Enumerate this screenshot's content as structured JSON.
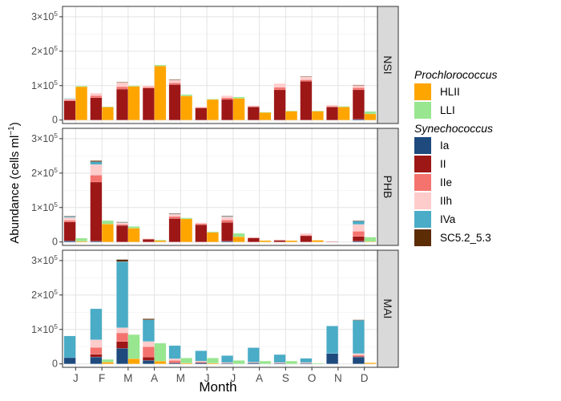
{
  "chart_data": {
    "type": "bar",
    "stacked": true,
    "dodged": true,
    "xlabel": "Month",
    "ylabel_main": "Abundance (cells ml",
    "ylabel_sup": "−1",
    "ylabel_close": ")",
    "y_ticks": [
      {
        "value": 0,
        "label": "0"
      },
      {
        "value": 100000,
        "mant": "1×10",
        "exp": "5"
      },
      {
        "value": 200000,
        "mant": "2×10",
        "exp": "5"
      },
      {
        "value": 300000,
        "mant": "3×10",
        "exp": "5"
      }
    ],
    "ylim": [
      -10000,
      330000
    ],
    "categories": [
      "J",
      "F",
      "M",
      "A",
      "M",
      "J",
      "J",
      "A",
      "S",
      "O",
      "N",
      "D"
    ],
    "grid": true,
    "legend_position": "right",
    "legend": {
      "groups": [
        {
          "title": "Prochlorococcus",
          "items": [
            {
              "name": "HLII",
              "color": "#ffa500"
            },
            {
              "name": "LLI",
              "color": "#98e68f"
            }
          ]
        },
        {
          "title": "Synechococcus",
          "items": [
            {
              "name": "Ia",
              "color": "#1e4a7e"
            },
            {
              "name": "II",
              "color": "#9e1717"
            },
            {
              "name": "IIe",
              "color": "#f4736f"
            },
            {
              "name": "IIh",
              "color": "#ffcccc"
            },
            {
              "name": "IVa",
              "color": "#4aacc6"
            },
            {
              "name": "SC5.2_5.3",
              "color": "#5c2c05"
            }
          ]
        }
      ]
    },
    "panels": [
      {
        "name": "NSI",
        "synechococcus": [
          {
            "Ia": 0,
            "II": 56000,
            "IIe": 3000,
            "IIh": 3000,
            "IVa": 1000,
            "SC5.2_5.3": 0
          },
          {
            "Ia": 0,
            "II": 65000,
            "IIe": 6000,
            "IIh": 7000,
            "IVa": 0,
            "SC5.2_5.3": 0
          },
          {
            "Ia": 0,
            "II": 90000,
            "IIe": 7000,
            "IIh": 12000,
            "IVa": 0,
            "SC5.2_5.3": 1000
          },
          {
            "Ia": 0,
            "II": 93000,
            "IIe": 3000,
            "IIh": 4000,
            "IVa": 0,
            "SC5.2_5.3": 0
          },
          {
            "Ia": 0,
            "II": 103000,
            "IIe": 5000,
            "IIh": 9000,
            "IVa": 0,
            "SC5.2_5.3": 1000
          },
          {
            "Ia": 0,
            "II": 35000,
            "IIe": 2000,
            "IIh": 2000,
            "IVa": 0,
            "SC5.2_5.3": 0
          },
          {
            "Ia": 0,
            "II": 60000,
            "IIe": 5000,
            "IIh": 6000,
            "IVa": 0,
            "SC5.2_5.3": 0
          },
          {
            "Ia": 0,
            "II": 38000,
            "IIe": 2000,
            "IIh": 2000,
            "IVa": 0,
            "SC5.2_5.3": 0
          },
          {
            "Ia": 0,
            "II": 88000,
            "IIe": 7000,
            "IIh": 11000,
            "IVa": 0,
            "SC5.2_5.3": 0
          },
          {
            "Ia": 0,
            "II": 113000,
            "IIe": 4000,
            "IIh": 9000,
            "IVa": 0,
            "SC5.2_5.3": 1000
          },
          {
            "Ia": 0,
            "II": 38000,
            "IIe": 2000,
            "IIh": 4000,
            "IVa": 0,
            "SC5.2_5.3": 0
          },
          {
            "Ia": 2000,
            "II": 86000,
            "IIe": 6000,
            "IIh": 7000,
            "IVa": 0,
            "SC5.2_5.3": 1000
          }
        ],
        "prochlorococcus": [
          {
            "HLII": 97000,
            "LLI": 2000
          },
          {
            "HLII": 38000,
            "LLI": 1000
          },
          {
            "HLII": 98000,
            "LLI": 2000
          },
          {
            "HLII": 157000,
            "LLI": 3000
          },
          {
            "HLII": 70000,
            "LLI": 4000
          },
          {
            "HLII": 60000,
            "LLI": 1000
          },
          {
            "HLII": 63000,
            "LLI": 4000
          },
          {
            "HLII": 22000,
            "LLI": 1000
          },
          {
            "HLII": 26000,
            "LLI": 1000
          },
          {
            "HLII": 26000,
            "LLI": 1000
          },
          {
            "HLII": 38000,
            "LLI": 2000
          },
          {
            "HLII": 18000,
            "LLI": 7000
          }
        ]
      },
      {
        "name": "PHB",
        "synechococcus": [
          {
            "Ia": 3000,
            "II": 55000,
            "IIe": 5000,
            "IIh": 8000,
            "IVa": 3000,
            "SC5.2_5.3": 1000
          },
          {
            "Ia": 2000,
            "II": 172000,
            "IIe": 20000,
            "IIh": 31000,
            "IVa": 8000,
            "SC5.2_5.3": 3000
          },
          {
            "Ia": 0,
            "II": 48000,
            "IIe": 3000,
            "IIh": 5000,
            "IVa": 1000,
            "SC5.2_5.3": 1000
          },
          {
            "Ia": 0,
            "II": 8000,
            "IIe": 1000,
            "IIh": 1000,
            "IVa": 0,
            "SC5.2_5.3": 0
          },
          {
            "Ia": 0,
            "II": 68000,
            "IIe": 6000,
            "IIh": 7000,
            "IVa": 1000,
            "SC5.2_5.3": 1000
          },
          {
            "Ia": 0,
            "II": 50000,
            "IIe": 3000,
            "IIh": 3000,
            "IVa": 0,
            "SC5.2_5.3": 0
          },
          {
            "Ia": 2000,
            "II": 55000,
            "IIe": 7000,
            "IIh": 9000,
            "IVa": 2000,
            "SC5.2_5.3": 1000
          },
          {
            "Ia": 0,
            "II": 12000,
            "IIe": 1000,
            "IIh": 1000,
            "IVa": 0,
            "SC5.2_5.3": 0
          },
          {
            "Ia": 0,
            "II": 5000,
            "IIe": 1000,
            "IIh": 1000,
            "IVa": 0,
            "SC5.2_5.3": 0
          },
          {
            "Ia": 0,
            "II": 18000,
            "IIe": 2000,
            "IIh": 5000,
            "IVa": 0,
            "SC5.2_5.3": 0
          },
          {
            "Ia": 0,
            "II": 1000,
            "IIe": 0,
            "IIh": 1000,
            "IVa": 0,
            "SC5.2_5.3": 0
          },
          {
            "Ia": 2000,
            "II": 14000,
            "IIe": 15000,
            "IIh": 20000,
            "IVa": 10000,
            "SC5.2_5.3": 1000
          }
        ],
        "prochlorococcus": [
          {
            "HLII": 2000,
            "LLI": 9000
          },
          {
            "HLII": 52000,
            "LLI": 10000
          },
          {
            "HLII": 40000,
            "LLI": 5000
          },
          {
            "HLII": 4000,
            "LLI": 2000
          },
          {
            "HLII": 67000,
            "LLI": 3000
          },
          {
            "HLII": 28000,
            "LLI": 2000
          },
          {
            "HLII": 15000,
            "LLI": 10000
          },
          {
            "HLII": 4000,
            "LLI": 0
          },
          {
            "HLII": 4000,
            "LLI": 0
          },
          {
            "HLII": 5000,
            "LLI": 0
          },
          {
            "HLII": 0,
            "LLI": 0
          },
          {
            "HLII": 1000,
            "LLI": 13000
          }
        ]
      },
      {
        "name": "MAI",
        "synechococcus": [
          {
            "Ia": 18000,
            "II": 0,
            "IIe": 0,
            "IIh": 0,
            "IVa": 63000,
            "SC5.2_5.3": 0
          },
          {
            "Ia": 20000,
            "II": 8000,
            "IIe": 20000,
            "IIh": 22000,
            "IVa": 90000,
            "SC5.2_5.3": 0
          },
          {
            "Ia": 45000,
            "II": 20000,
            "IIe": 25000,
            "IIh": 15000,
            "IVa": 192000,
            "SC5.2_5.3": 6000
          },
          {
            "Ia": 10000,
            "II": 10000,
            "IIe": 30000,
            "IIh": 15000,
            "IVa": 63000,
            "SC5.2_5.3": 3000
          },
          {
            "Ia": 2000,
            "II": 2000,
            "IIe": 6000,
            "IIh": 5000,
            "IVa": 38000,
            "SC5.2_5.3": 0
          },
          {
            "Ia": 3000,
            "II": 1000,
            "IIe": 2000,
            "IIh": 2000,
            "IVa": 30000,
            "SC5.2_5.3": 0
          },
          {
            "Ia": 2000,
            "II": 0,
            "IIe": 1000,
            "IIh": 1000,
            "IVa": 20000,
            "SC5.2_5.3": 0
          },
          {
            "Ia": 3000,
            "II": 0,
            "IIe": 1000,
            "IIh": 1000,
            "IVa": 42000,
            "SC5.2_5.3": 0
          },
          {
            "Ia": 2000,
            "II": 0,
            "IIe": 1000,
            "IIh": 1000,
            "IVa": 23000,
            "SC5.2_5.3": 0
          },
          {
            "Ia": 2000,
            "II": 0,
            "IIe": 1000,
            "IIh": 1000,
            "IVa": 12000,
            "SC5.2_5.3": 0
          },
          {
            "Ia": 30000,
            "II": 0,
            "IIe": 0,
            "IIh": 0,
            "IVa": 80000,
            "SC5.2_5.3": 0
          },
          {
            "Ia": 20000,
            "II": 2000,
            "IIe": 3000,
            "IIh": 5000,
            "IVa": 97000,
            "SC5.2_5.3": 1000
          }
        ],
        "prochlorococcus": [
          {
            "HLII": 0,
            "LLI": 0
          },
          {
            "HLII": 5000,
            "LLI": 8000
          },
          {
            "HLII": 15000,
            "LLI": 70000
          },
          {
            "HLII": 8000,
            "LLI": 52000
          },
          {
            "HLII": 2000,
            "LLI": 15000
          },
          {
            "HLII": 2000,
            "LLI": 15000
          },
          {
            "HLII": 0,
            "LLI": 10000
          },
          {
            "HLII": 0,
            "LLI": 8000
          },
          {
            "HLII": 0,
            "LLI": 8000
          },
          {
            "HLII": 0,
            "LLI": 2000
          },
          {
            "HLII": 0,
            "LLI": 0
          },
          {
            "HLII": 3000,
            "LLI": 0
          }
        ]
      }
    ]
  }
}
